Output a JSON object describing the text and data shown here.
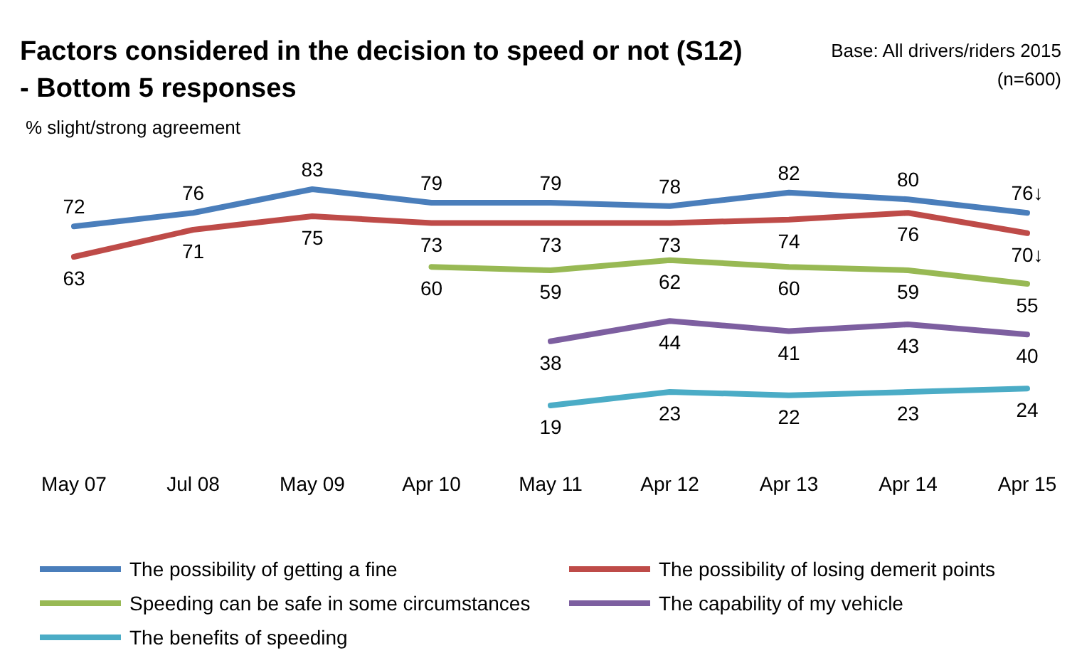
{
  "chart_data": {
    "type": "line",
    "title": "Factors considered in the decision to speed or not (S12)\n- Bottom 5 responses",
    "ylabel": "% slight/strong agreement",
    "annotations": [
      "Base: All drivers/riders 2015",
      "(n=600)"
    ],
    "categories": [
      "May 07",
      "Jul 08",
      "May 09",
      "Apr 10",
      "May 11",
      "Apr 12",
      "Apr 13",
      "Apr 14",
      "Apr 15"
    ],
    "series": [
      {
        "name": "The possibility of getting a fine",
        "color": "#4a7ebb",
        "values": [
          72,
          76,
          83,
          79,
          79,
          78,
          82,
          80,
          76
        ],
        "value_labels": [
          "72",
          "76",
          "83",
          "79",
          "79",
          "78",
          "82",
          "80",
          "76↓"
        ]
      },
      {
        "name": "The possibility of losing demerit points",
        "color": "#be4b48",
        "values": [
          63,
          71,
          75,
          73,
          73,
          73,
          74,
          76,
          70
        ],
        "value_labels": [
          "63",
          "71",
          "75",
          "73",
          "73",
          "73",
          "74",
          "76",
          "70↓"
        ]
      },
      {
        "name": "Speeding can be safe in some circumstances",
        "color": "#98b954",
        "values": [
          null,
          null,
          null,
          60,
          59,
          62,
          60,
          59,
          55
        ],
        "value_labels": [
          null,
          null,
          null,
          "60",
          "59",
          "62",
          "60",
          "59",
          "55"
        ]
      },
      {
        "name": "The capability of my vehicle",
        "color": "#7d5fa0",
        "values": [
          null,
          null,
          null,
          null,
          38,
          44,
          41,
          43,
          40
        ],
        "value_labels": [
          null,
          null,
          null,
          null,
          "38",
          "44",
          "41",
          "43",
          "40"
        ]
      },
      {
        "name": "The benefits of speeding",
        "color": "#4bacc6",
        "values": [
          null,
          null,
          null,
          null,
          19,
          23,
          22,
          23,
          24
        ],
        "value_labels": [
          null,
          null,
          null,
          null,
          "19",
          "23",
          "22",
          "23",
          "24"
        ]
      }
    ],
    "marker": "none",
    "line_style": "solid",
    "grid": false,
    "legend": "bottom"
  }
}
